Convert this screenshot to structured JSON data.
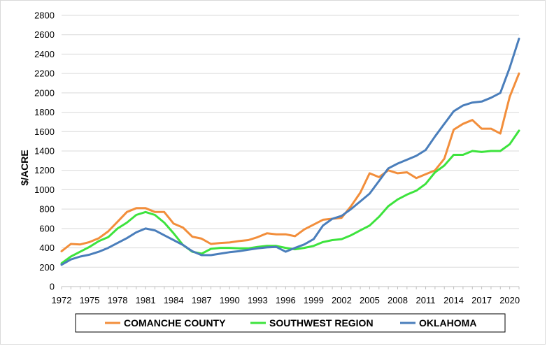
{
  "chart_data": {
    "type": "line",
    "ylabel": "$/ACRE",
    "xlabel": "",
    "title": "",
    "ylim": [
      0,
      2800
    ],
    "xlim": [
      1972,
      2021
    ],
    "y_ticks": [
      "0",
      "200",
      "400",
      "600",
      "800",
      "1000",
      "1200",
      "1400",
      "1600",
      "1800",
      "2000",
      "2200",
      "2400",
      "2600",
      "2800"
    ],
    "x_ticks": [
      "1972",
      "1975",
      "1978",
      "1981",
      "1984",
      "1987",
      "1990",
      "1993",
      "1996",
      "1999",
      "2002",
      "2005",
      "2008",
      "2011",
      "2014",
      "2017",
      "2020"
    ],
    "grid": "horizontal",
    "legend_position": "bottom",
    "x": [
      1972,
      1973,
      1974,
      1975,
      1976,
      1977,
      1978,
      1979,
      1980,
      1981,
      1982,
      1983,
      1984,
      1985,
      1986,
      1987,
      1988,
      1989,
      1990,
      1991,
      1992,
      1993,
      1994,
      1995,
      1996,
      1997,
      1998,
      1999,
      2000,
      2001,
      2002,
      2003,
      2004,
      2005,
      2006,
      2007,
      2008,
      2009,
      2010,
      2011,
      2012,
      2013,
      2014,
      2015,
      2016,
      2017,
      2018,
      2019,
      2020,
      2021
    ],
    "series": [
      {
        "name": "COMANCHE COUNTY",
        "color": "#f28e3b",
        "values": [
          365,
          440,
          435,
          460,
          500,
          570,
          670,
          770,
          810,
          810,
          770,
          770,
          650,
          610,
          515,
          495,
          440,
          450,
          455,
          470,
          480,
          510,
          550,
          540,
          540,
          520,
          590,
          640,
          690,
          700,
          710,
          830,
          970,
          1170,
          1130,
          1200,
          1170,
          1180,
          1120,
          1160,
          1200,
          1320,
          1620,
          1680,
          1720,
          1630,
          1630,
          1580,
          1960,
          2200
        ]
      },
      {
        "name": "SOUTHWEST REGION",
        "color": "#3de33d",
        "values": [
          240,
          310,
          360,
          410,
          470,
          510,
          600,
          660,
          740,
          770,
          740,
          660,
          550,
          430,
          360,
          340,
          390,
          400,
          400,
          395,
          395,
          410,
          420,
          420,
          400,
          385,
          400,
          420,
          460,
          480,
          490,
          530,
          580,
          630,
          720,
          830,
          900,
          950,
          990,
          1060,
          1180,
          1250,
          1360,
          1360,
          1400,
          1390,
          1400,
          1400,
          1470,
          1610
        ]
      },
      {
        "name": "OKLAHOMA",
        "color": "#4a7ebb",
        "values": [
          225,
          280,
          310,
          330,
          360,
          400,
          450,
          500,
          560,
          600,
          580,
          530,
          480,
          430,
          365,
          325,
          325,
          340,
          355,
          365,
          380,
          395,
          405,
          410,
          360,
          400,
          435,
          490,
          630,
          700,
          730,
          800,
          880,
          960,
          1090,
          1220,
          1270,
          1310,
          1350,
          1410,
          1550,
          1680,
          1810,
          1870,
          1900,
          1910,
          1950,
          2000,
          2260,
          2560
        ]
      }
    ]
  }
}
